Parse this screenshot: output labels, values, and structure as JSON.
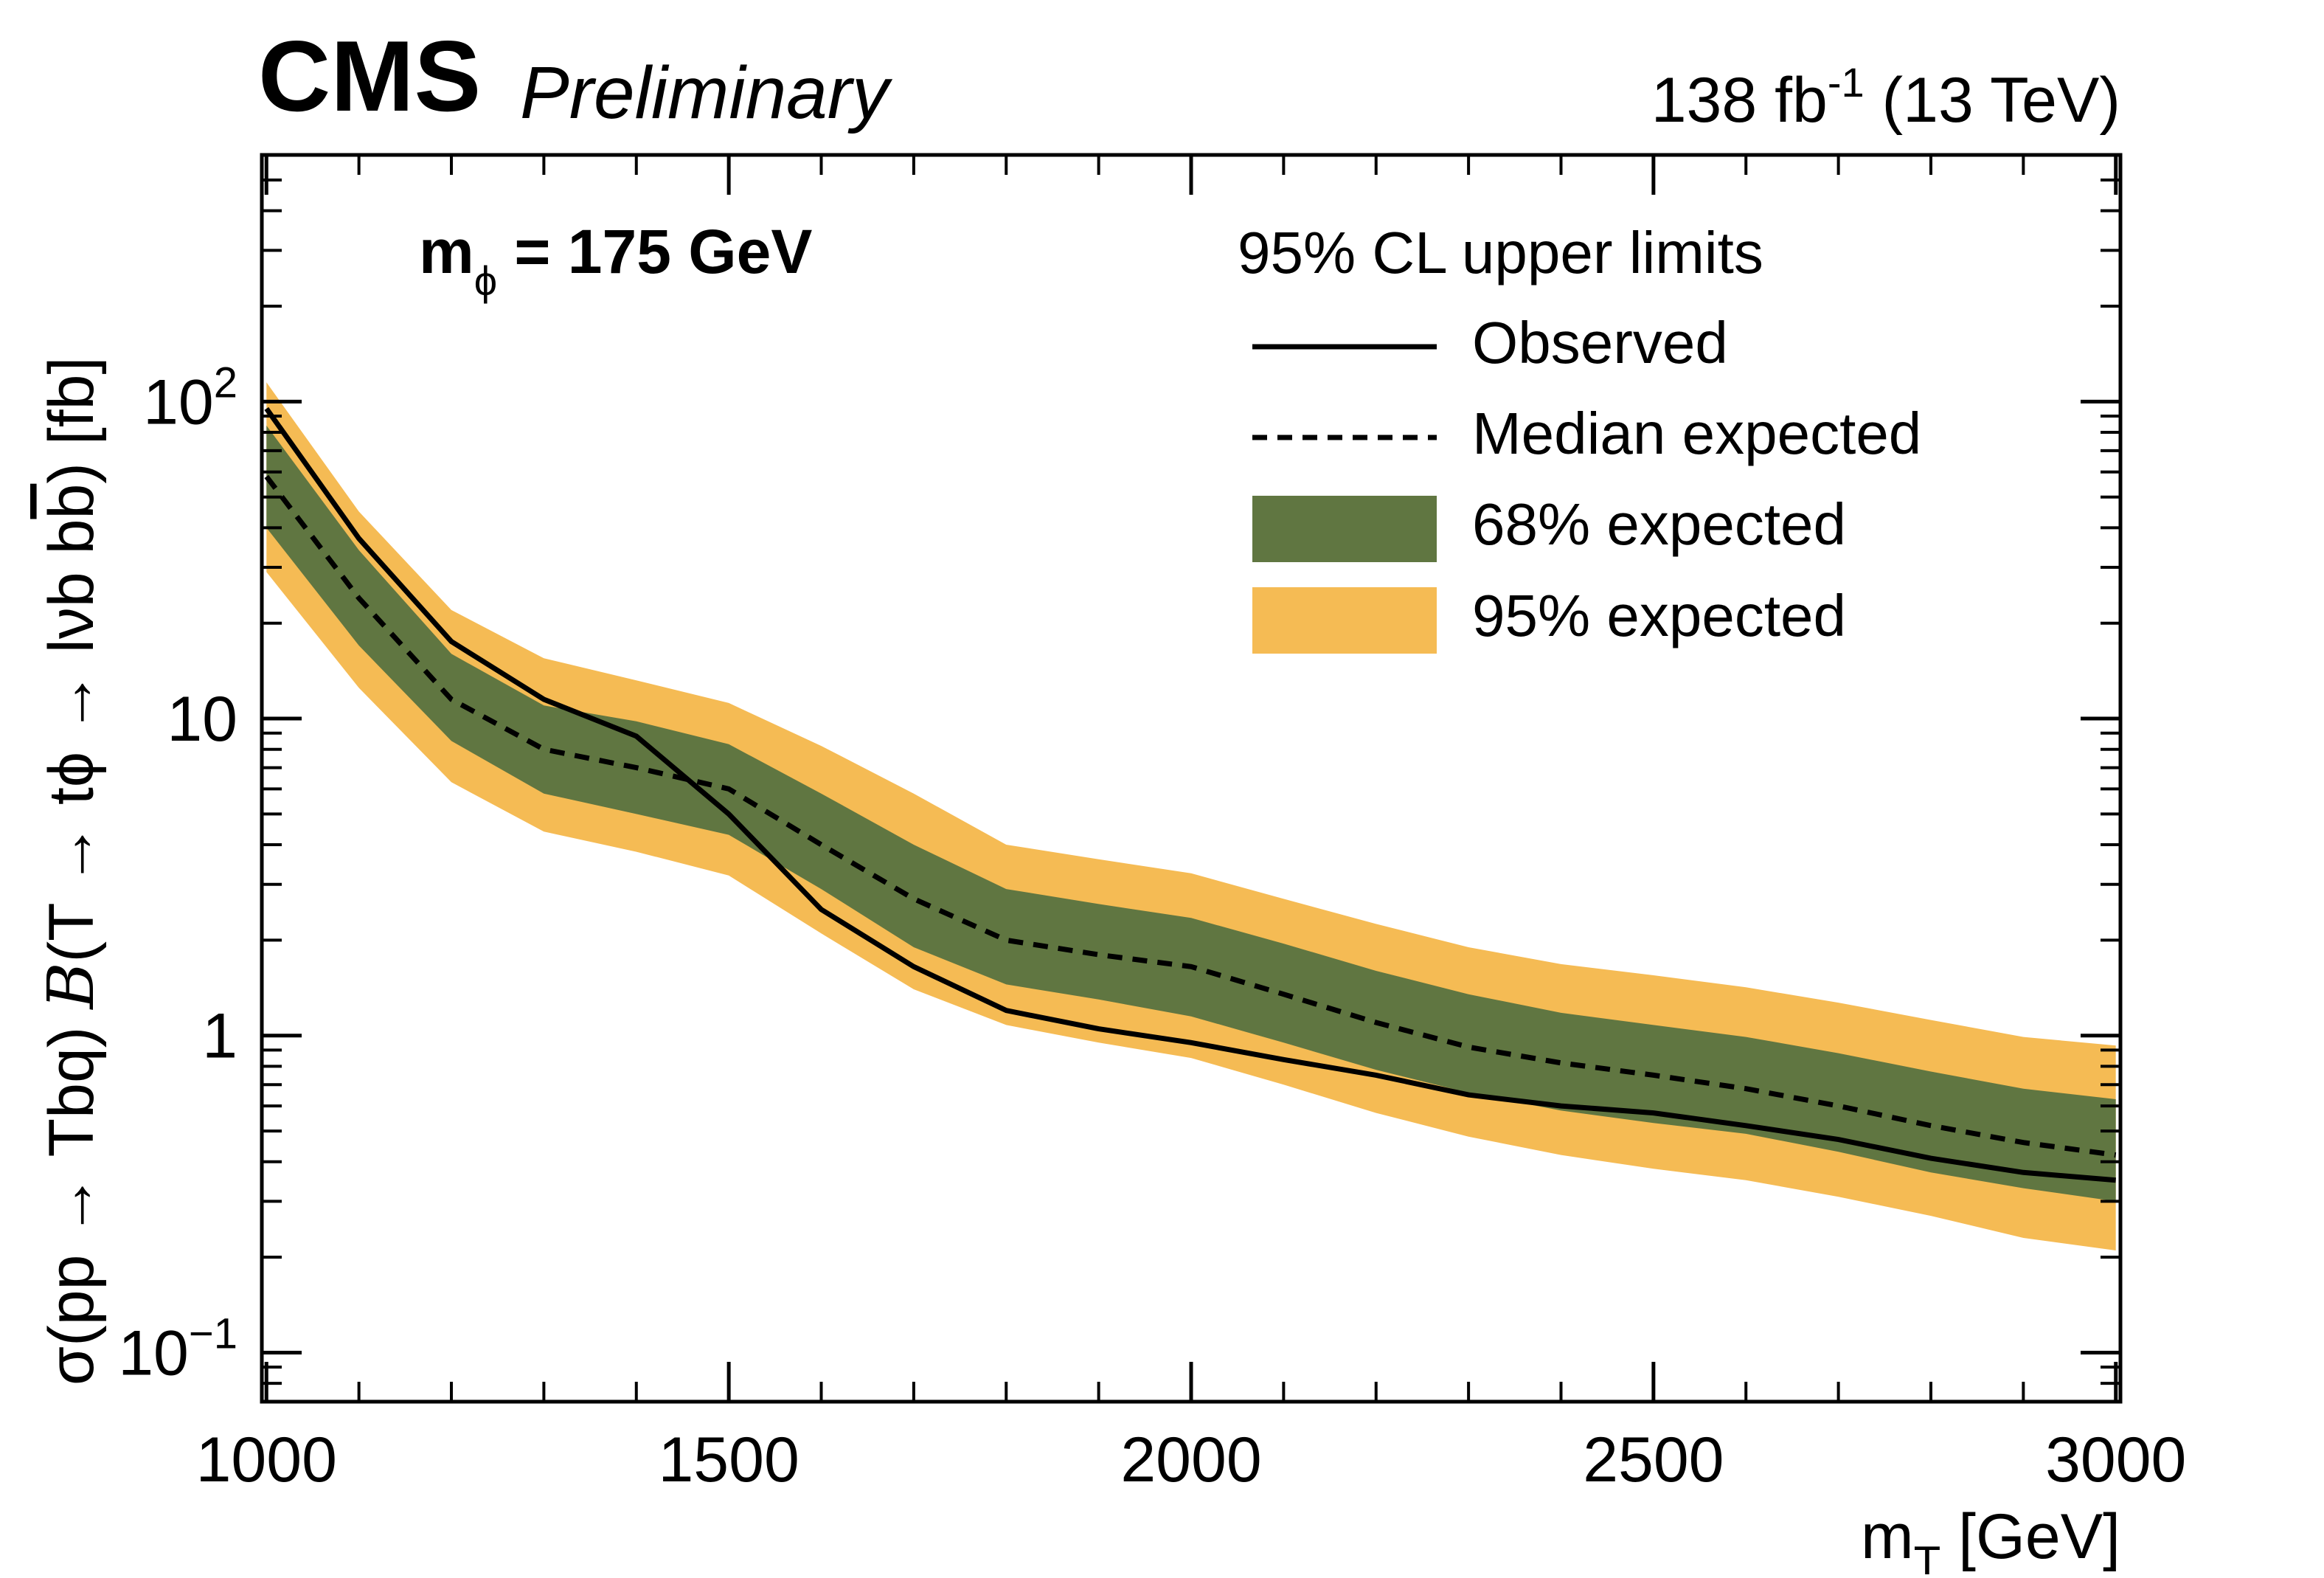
{
  "header": {
    "experiment": "CMS",
    "status": "Preliminary",
    "lumi": "138",
    "lumi_unit": "fb",
    "lumi_exp": "-1",
    "energy": "(13 TeV)"
  },
  "annotation": {
    "m": "m",
    "sub": "ϕ",
    "rest": " = 175 GeV"
  },
  "legend": {
    "header": "95% CL upper limits",
    "entries": [
      "Observed",
      "Median expected",
      "68% expected",
      "95% expected"
    ]
  },
  "axes": {
    "xlabel_main": "m",
    "xlabel_sub": "T",
    "xlabel_unit": " [GeV]",
    "ylabel_part1": "σ(pp → Tbq) ",
    "ylabel_script": "B",
    "ylabel_part2": "(T → tϕ → lνb  b",
    "ylabel_bbar": "b",
    "ylabel_part3": ") [fb]",
    "y_ticks": [
      {
        "base": "10",
        "exp": "−1"
      },
      {
        "base": "1",
        "exp": ""
      },
      {
        "base": "10",
        "exp": ""
      },
      {
        "base": "10",
        "exp": "2"
      }
    ]
  },
  "colors": {
    "band95": "#F5BB54",
    "band68": "#607641",
    "line": "#000000"
  },
  "chart_data": {
    "type": "line",
    "log_y": true,
    "xlim": [
      995,
      3005
    ],
    "ylim": [
      0.07,
      600
    ],
    "x_ticks": [
      1000,
      1500,
      2000,
      2500,
      3000
    ],
    "x": [
      1000,
      1100,
      1200,
      1300,
      1400,
      1500,
      1600,
      1700,
      1800,
      1900,
      2000,
      2100,
      2200,
      2300,
      2400,
      2500,
      2600,
      2700,
      2800,
      2900,
      3000
    ],
    "observed": [
      95,
      37,
      17.5,
      11.5,
      8.8,
      5.0,
      2.5,
      1.65,
      1.2,
      1.05,
      0.95,
      0.84,
      0.75,
      0.65,
      0.6,
      0.57,
      0.52,
      0.47,
      0.41,
      0.37,
      0.35
    ],
    "expected": [
      58,
      24,
      11.5,
      8.0,
      7.0,
      6.0,
      4.0,
      2.7,
      2.0,
      1.8,
      1.65,
      1.35,
      1.1,
      0.92,
      0.82,
      0.75,
      0.68,
      0.6,
      0.52,
      0.46,
      0.42
    ],
    "band68_low": [
      40,
      17,
      8.5,
      5.8,
      5.0,
      4.3,
      2.9,
      1.9,
      1.45,
      1.3,
      1.15,
      0.95,
      0.78,
      0.66,
      0.58,
      0.53,
      0.49,
      0.43,
      0.37,
      0.33,
      0.3
    ],
    "band68_high": [
      84,
      34,
      16,
      11,
      9.8,
      8.3,
      5.8,
      4.0,
      2.9,
      2.6,
      2.35,
      1.95,
      1.6,
      1.35,
      1.18,
      1.08,
      0.99,
      0.88,
      0.77,
      0.68,
      0.63
    ],
    "band95_low": [
      29,
      12.5,
      6.3,
      4.4,
      3.8,
      3.2,
      2.1,
      1.4,
      1.08,
      0.95,
      0.85,
      0.7,
      0.57,
      0.48,
      0.42,
      0.38,
      0.35,
      0.31,
      0.27,
      0.23,
      0.21
    ],
    "band95_high": [
      115,
      45,
      22,
      15.5,
      13.2,
      11.2,
      8.2,
      5.8,
      4.0,
      3.6,
      3.25,
      2.7,
      2.25,
      1.9,
      1.68,
      1.55,
      1.42,
      1.27,
      1.12,
      0.99,
      0.93
    ],
    "legend_position": "top-right"
  }
}
